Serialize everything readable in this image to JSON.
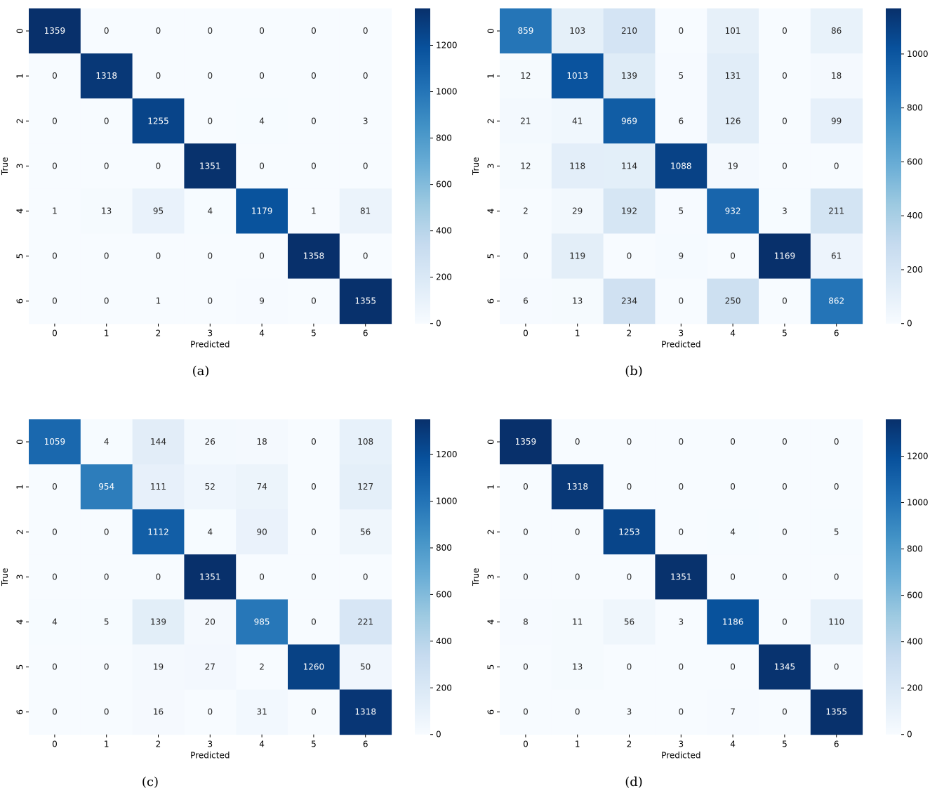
{
  "chart_data": [
    {
      "type": "heatmap",
      "caption": "(a)",
      "xlabel": "Predicted",
      "ylabel": "True",
      "x_categories": [
        "0",
        "1",
        "2",
        "3",
        "4",
        "5",
        "6"
      ],
      "y_categories": [
        "0",
        "1",
        "2",
        "3",
        "4",
        "5",
        "6"
      ],
      "colorbar": {
        "min": 0,
        "max": 1359,
        "ticks": [
          0,
          200,
          400,
          600,
          800,
          1000,
          1200
        ]
      },
      "matrix": [
        [
          1359,
          0,
          0,
          0,
          0,
          0,
          0
        ],
        [
          0,
          1318,
          0,
          0,
          0,
          0,
          0
        ],
        [
          0,
          0,
          1255,
          0,
          4,
          0,
          3
        ],
        [
          0,
          0,
          0,
          1351,
          0,
          0,
          0
        ],
        [
          1,
          13,
          95,
          4,
          1179,
          1,
          81
        ],
        [
          0,
          0,
          0,
          0,
          0,
          1358,
          0
        ],
        [
          0,
          0,
          1,
          0,
          9,
          0,
          1355
        ]
      ]
    },
    {
      "type": "heatmap",
      "caption": "(b)",
      "xlabel": "Predicted",
      "ylabel": "True",
      "x_categories": [
        "0",
        "1",
        "2",
        "3",
        "4",
        "5",
        "6"
      ],
      "y_categories": [
        "0",
        "1",
        "2",
        "3",
        "4",
        "5",
        "6"
      ],
      "colorbar": {
        "min": 0,
        "max": 1169,
        "ticks": [
          0,
          200,
          400,
          600,
          800,
          1000
        ]
      },
      "matrix": [
        [
          859,
          103,
          210,
          0,
          101,
          0,
          86
        ],
        [
          12,
          1013,
          139,
          5,
          131,
          0,
          18
        ],
        [
          21,
          41,
          969,
          6,
          126,
          0,
          99
        ],
        [
          12,
          118,
          114,
          1088,
          19,
          0,
          0
        ],
        [
          2,
          29,
          192,
          5,
          932,
          3,
          211
        ],
        [
          0,
          119,
          0,
          9,
          0,
          1169,
          61
        ],
        [
          6,
          13,
          234,
          0,
          250,
          0,
          862
        ]
      ]
    },
    {
      "type": "heatmap",
      "caption": "(c)",
      "xlabel": "Predicted",
      "ylabel": "True",
      "x_categories": [
        "0",
        "1",
        "2",
        "3",
        "4",
        "5",
        "6"
      ],
      "y_categories": [
        "0",
        "1",
        "2",
        "3",
        "4",
        "5",
        "6"
      ],
      "colorbar": {
        "min": 0,
        "max": 1351,
        "ticks": [
          0,
          200,
          400,
          600,
          800,
          1000,
          1200
        ]
      },
      "matrix": [
        [
          1059,
          4,
          144,
          26,
          18,
          0,
          108
        ],
        [
          0,
          954,
          111,
          52,
          74,
          0,
          127
        ],
        [
          0,
          0,
          1112,
          4,
          90,
          0,
          56
        ],
        [
          0,
          0,
          0,
          1351,
          0,
          0,
          0
        ],
        [
          4,
          5,
          139,
          20,
          985,
          0,
          221
        ],
        [
          0,
          0,
          19,
          27,
          2,
          1260,
          50
        ],
        [
          0,
          0,
          16,
          0,
          31,
          0,
          1318
        ]
      ]
    },
    {
      "type": "heatmap",
      "caption": "(d)",
      "xlabel": "Predicted",
      "ylabel": "True",
      "x_categories": [
        "0",
        "1",
        "2",
        "3",
        "4",
        "5",
        "6"
      ],
      "y_categories": [
        "0",
        "1",
        "2",
        "3",
        "4",
        "5",
        "6"
      ],
      "colorbar": {
        "min": 0,
        "max": 1359,
        "ticks": [
          0,
          200,
          400,
          600,
          800,
          1000,
          1200
        ]
      },
      "matrix": [
        [
          1359,
          0,
          0,
          0,
          0,
          0,
          0
        ],
        [
          0,
          1318,
          0,
          0,
          0,
          0,
          0
        ],
        [
          0,
          0,
          1253,
          0,
          4,
          0,
          5
        ],
        [
          0,
          0,
          0,
          1351,
          0,
          0,
          0
        ],
        [
          8,
          11,
          56,
          3,
          1186,
          0,
          110
        ],
        [
          0,
          13,
          0,
          0,
          0,
          1345,
          0
        ],
        [
          0,
          0,
          3,
          0,
          7,
          0,
          1355
        ]
      ]
    }
  ]
}
